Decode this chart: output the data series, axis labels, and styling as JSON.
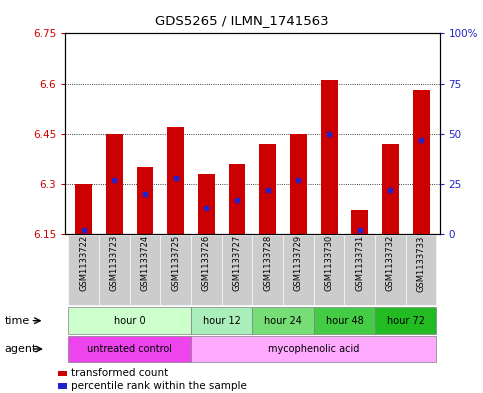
{
  "title": "GDS5265 / ILMN_1741563",
  "samples": [
    "GSM1133722",
    "GSM1133723",
    "GSM1133724",
    "GSM1133725",
    "GSM1133726",
    "GSM1133727",
    "GSM1133728",
    "GSM1133729",
    "GSM1133730",
    "GSM1133731",
    "GSM1133732",
    "GSM1133733"
  ],
  "bar_bottom": 6.15,
  "bar_tops": [
    6.3,
    6.45,
    6.35,
    6.47,
    6.33,
    6.36,
    6.42,
    6.45,
    6.61,
    6.22,
    6.42,
    6.58
  ],
  "percentile_values": [
    0.02,
    0.27,
    0.2,
    0.28,
    0.13,
    0.17,
    0.22,
    0.27,
    0.5,
    0.02,
    0.22,
    0.47
  ],
  "ylim_left": [
    6.15,
    6.75
  ],
  "ylim_right": [
    0,
    100
  ],
  "yticks_left": [
    6.15,
    6.3,
    6.45,
    6.6,
    6.75
  ],
  "yticks_right": [
    0,
    25,
    50,
    75,
    100
  ],
  "ytick_labels_left": [
    "6.15",
    "6.3",
    "6.45",
    "6.6",
    "6.75"
  ],
  "ytick_labels_right": [
    "0",
    "25",
    "50",
    "75",
    "100%"
  ],
  "grid_yticks": [
    6.3,
    6.45,
    6.6
  ],
  "bar_color": "#CC0000",
  "percentile_color": "#2222CC",
  "background_color": "#FFFFFF",
  "plot_bg_color": "#FFFFFF",
  "sample_bg_color": "#CCCCCC",
  "time_groups": [
    {
      "label": "hour 0",
      "start": 0,
      "end": 3,
      "color": "#CCFFCC"
    },
    {
      "label": "hour 12",
      "start": 4,
      "end": 5,
      "color": "#AAEEBB"
    },
    {
      "label": "hour 24",
      "start": 6,
      "end": 7,
      "color": "#77DD77"
    },
    {
      "label": "hour 48",
      "start": 8,
      "end": 9,
      "color": "#44CC44"
    },
    {
      "label": "hour 72",
      "start": 10,
      "end": 11,
      "color": "#22BB22"
    }
  ],
  "agent_groups": [
    {
      "label": "untreated control",
      "start": 0,
      "end": 3,
      "color": "#EE44EE"
    },
    {
      "label": "mycophenolic acid",
      "start": 4,
      "end": 11,
      "color": "#FFAAFF"
    }
  ],
  "time_label": "time",
  "agent_label": "agent",
  "legend_items": [
    {
      "label": "transformed count",
      "color": "#CC0000"
    },
    {
      "label": "percentile rank within the sample",
      "color": "#2222CC"
    }
  ],
  "left_axis_color": "#CC0000",
  "right_axis_color": "#2222CC",
  "bar_width": 0.55
}
